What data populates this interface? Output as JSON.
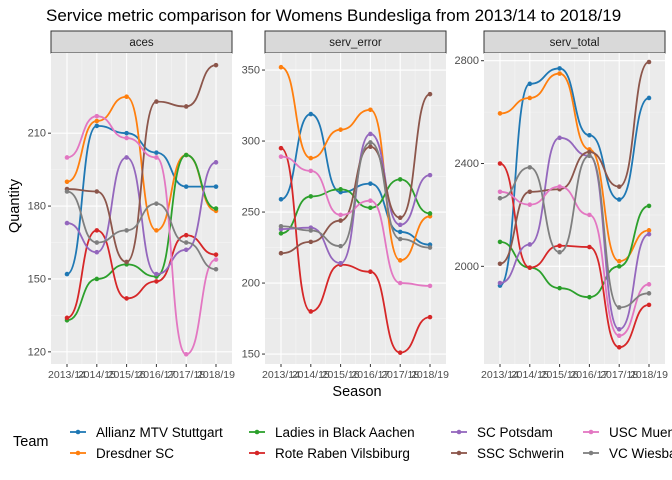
{
  "chart_data": {
    "type": "line",
    "title": "Service metric comparison for Womens Bundesliga from 2013/14 to 2018/19",
    "xlabel": "Season",
    "ylabel": "Quantity",
    "legend_title": "Team",
    "legend_position": "bottom",
    "grid": true,
    "x": [
      "2013/14",
      "2014/15",
      "2015/16",
      "2016/17",
      "2017/18",
      "2018/19"
    ],
    "colors": {
      "Allianz MTV Stuttgart": "#1f78b4",
      "Dresdner SC": "#ff7f0e",
      "Ladies in Black Aachen": "#2ca02c",
      "Rote Raben Vilsbiburg": "#d62728",
      "SC Potsdam": "#9467bd",
      "SSC Schwerin": "#8c564b",
      "USC Muenster": "#e377c2",
      "VC Wiesbaden": "#7f7f7f"
    },
    "legend_entries": [
      "Allianz MTV Stuttgart",
      "Dresdner SC",
      "Ladies in Black Aachen",
      "Rote Raben Vilsbiburg",
      "SC Potsdam",
      "SSC Schwerin",
      "USC Muenster",
      "VC Wiesbaden"
    ],
    "panels": [
      {
        "strip": "aces",
        "ylim": [
          115,
          243
        ],
        "yticks": [
          120,
          150,
          180,
          210
        ],
        "series": [
          {
            "name": "Allianz MTV Stuttgart",
            "values": [
              152,
              213,
              210,
              202,
              188,
              188
            ]
          },
          {
            "name": "Dresdner SC",
            "values": [
              190,
              215,
              225,
              170,
              201,
              178
            ]
          },
          {
            "name": "Ladies in Black Aachen",
            "values": [
              133,
              150,
              156,
              151,
              201,
              179
            ]
          },
          {
            "name": "Rote Raben Vilsbiburg",
            "values": [
              134,
              170,
              142,
              149,
              168,
              160
            ]
          },
          {
            "name": "SC Potsdam",
            "values": [
              173,
              161,
              200,
              152,
              162,
              198
            ]
          },
          {
            "name": "SSC Schwerin",
            "values": [
              187,
              186,
              157,
              223,
              221,
              238
            ]
          },
          {
            "name": "USC Muenster",
            "values": [
              200,
              217,
              208,
              200,
              119,
              158
            ]
          },
          {
            "name": "VC Wiesbaden",
            "values": [
              186,
              165,
              170,
              181,
              165,
              154
            ]
          }
        ]
      },
      {
        "strip": "serv_error",
        "ylim": [
          143,
          362
        ],
        "yticks": [
          150,
          200,
          250,
          300,
          350
        ],
        "series": [
          {
            "name": "Allianz MTV Stuttgart",
            "values": [
              259,
              319,
              264,
              270,
              236,
              227
            ]
          },
          {
            "name": "Dresdner SC",
            "values": [
              352,
              288,
              308,
              322,
              216,
              247
            ]
          },
          {
            "name": "Ladies in Black Aachen",
            "values": [
              235,
              261,
              266,
              253,
              273,
              249
            ]
          },
          {
            "name": "Rote Raben Vilsbiburg",
            "values": [
              295,
              180,
              213,
              208,
              151,
              176
            ]
          },
          {
            "name": "SC Potsdam",
            "values": [
              238,
              239,
              214,
              305,
              241,
              276
            ]
          },
          {
            "name": "SSC Schwerin",
            "values": [
              221,
              229,
              244,
              296,
              246,
              333
            ]
          },
          {
            "name": "USC Muenster",
            "values": [
              289,
              279,
              248,
              258,
              200,
              198
            ]
          },
          {
            "name": "VC Wiesbaden",
            "values": [
              240,
              237,
              226,
              299,
              231,
              225
            ]
          }
        ]
      },
      {
        "strip": "serv_total",
        "ylim": [
          1620,
          2830
        ],
        "yticks": [
          2000,
          2400,
          2800
        ],
        "series": [
          {
            "name": "Allianz MTV Stuttgart",
            "values": [
              1925,
              2710,
              2770,
              2510,
              2260,
              2655
            ]
          },
          {
            "name": "Dresdner SC",
            "values": [
              2595,
              2655,
              2750,
              2455,
              2020,
              2140
            ]
          },
          {
            "name": "Ladies in Black Aachen",
            "values": [
              2095,
              1995,
              1915,
              1880,
              2000,
              2235
            ]
          },
          {
            "name": "Rote Raben Vilsbiburg",
            "values": [
              2400,
              1995,
              2080,
              2075,
              1685,
              1850
            ]
          },
          {
            "name": "SC Potsdam",
            "values": [
              1935,
              2085,
              2500,
              2430,
              1755,
              2125
            ]
          },
          {
            "name": "SSC Schwerin",
            "values": [
              2010,
              2290,
              2300,
              2445,
              2310,
              2795
            ]
          },
          {
            "name": "USC Muenster",
            "values": [
              2290,
              2240,
              2310,
              2200,
              1730,
              1930
            ]
          },
          {
            "name": "VC Wiesbaden",
            "values": [
              2265,
              2385,
              2055,
              2430,
              1840,
              1895
            ]
          }
        ]
      }
    ]
  }
}
